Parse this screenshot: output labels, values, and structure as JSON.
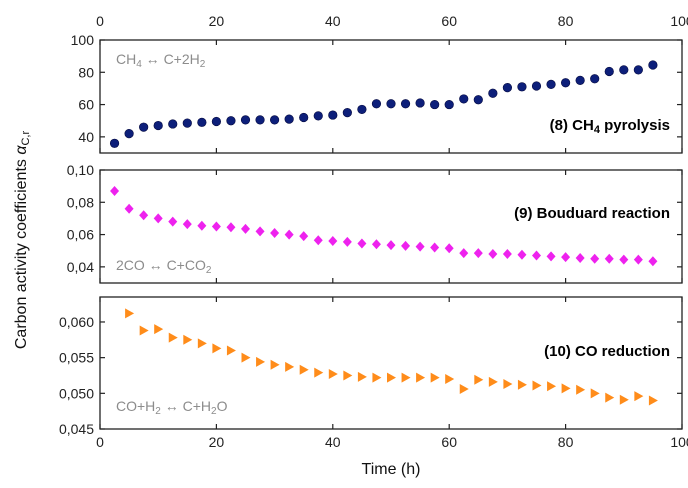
{
  "chart_data": {
    "type": "scatter",
    "xlabel": "Time (h)",
    "ylabel_text": "Carbon activity coefficients ",
    "ylabel_symbol": "α",
    "ylabel_subscript": "C,r",
    "xlim": [
      0,
      100
    ],
    "xticks": [
      "0",
      "20",
      "40",
      "60",
      "80",
      "100"
    ],
    "panels": [
      {
        "name": "(8) CH4 pyrolysis",
        "label_parts": [
          "(8) CH",
          "4",
          " pyrolysis"
        ],
        "equation_parts": [
          "CH",
          "4",
          " ↔ C+2H",
          "2"
        ],
        "marker": "circle",
        "color": "#0d1f7a",
        "ylim": [
          30,
          100
        ],
        "yticks": [
          40,
          60,
          80,
          100
        ],
        "yticklabels": [
          "40",
          "60",
          "80",
          "100"
        ],
        "x": [
          2.5,
          5,
          7.5,
          10,
          12.5,
          15,
          17.5,
          20,
          22.5,
          25,
          27.5,
          30,
          32.5,
          35,
          37.5,
          40,
          42.5,
          45,
          47.5,
          50,
          52.5,
          55,
          57.5,
          60,
          62.5,
          65,
          67.5,
          70,
          72.5,
          75,
          77.5,
          80,
          82.5,
          85,
          87.5,
          90,
          92.5,
          95
        ],
        "y": [
          36,
          42,
          46,
          47,
          48,
          48.5,
          49,
          49.5,
          50,
          50.5,
          50.5,
          50.5,
          51,
          52,
          53,
          53.5,
          55,
          57,
          60.5,
          60.5,
          60.5,
          61,
          60,
          60,
          63.5,
          63,
          67,
          70.5,
          71,
          71.5,
          72.5,
          73.5,
          75,
          76,
          80.5,
          81.5,
          81.5,
          84.5
        ]
      },
      {
        "name": "(9) Bouduard reaction",
        "label_parts": [
          "(9) Bouduard reaction"
        ],
        "equation_parts": [
          "2CO ↔ C+CO",
          "2"
        ],
        "marker": "diamond",
        "color": "#ee22ee",
        "ylim": [
          0.03,
          0.1
        ],
        "yticks": [
          0.04,
          0.06,
          0.08,
          0.1
        ],
        "yticklabels": [
          "0,04",
          "0,06",
          "0,08",
          "0,10"
        ],
        "x": [
          2.5,
          5,
          7.5,
          10,
          12.5,
          15,
          17.5,
          20,
          22.5,
          25,
          27.5,
          30,
          32.5,
          35,
          37.5,
          40,
          42.5,
          45,
          47.5,
          50,
          52.5,
          55,
          57.5,
          60,
          62.5,
          65,
          67.5,
          70,
          72.5,
          75,
          77.5,
          80,
          82.5,
          85,
          87.5,
          90,
          92.5,
          95
        ],
        "y": [
          0.087,
          0.076,
          0.072,
          0.07,
          0.068,
          0.0665,
          0.0655,
          0.065,
          0.0645,
          0.0635,
          0.062,
          0.061,
          0.06,
          0.059,
          0.0565,
          0.056,
          0.0555,
          0.0545,
          0.054,
          0.0535,
          0.053,
          0.0525,
          0.052,
          0.0515,
          0.0485,
          0.0485,
          0.048,
          0.048,
          0.0475,
          0.047,
          0.0465,
          0.046,
          0.0455,
          0.045,
          0.045,
          0.0445,
          0.0445,
          0.0435
        ]
      },
      {
        "name": "(10) CO reduction",
        "label_parts": [
          "(10) CO reduction"
        ],
        "equation_parts": [
          "CO+H",
          "2",
          " ↔ C+H",
          "2",
          "O"
        ],
        "marker": "triangle-right",
        "color": "#ff8c1a",
        "ylim": [
          0.045,
          0.0635
        ],
        "yticks": [
          0.045,
          0.05,
          0.055,
          0.06
        ],
        "yticklabels": [
          "0,045",
          "0,050",
          "0,055",
          "0,060"
        ],
        "x": [
          5,
          7.5,
          10,
          12.5,
          15,
          17.5,
          20,
          22.5,
          25,
          27.5,
          30,
          32.5,
          35,
          37.5,
          40,
          42.5,
          45,
          47.5,
          50,
          52.5,
          55,
          57.5,
          60,
          62.5,
          65,
          67.5,
          70,
          72.5,
          75,
          77.5,
          80,
          82.5,
          85,
          87.5,
          90,
          92.5,
          95
        ],
        "y": [
          0.0612,
          0.0588,
          0.059,
          0.0578,
          0.0575,
          0.057,
          0.0563,
          0.056,
          0.055,
          0.0544,
          0.054,
          0.0537,
          0.0533,
          0.0529,
          0.0527,
          0.0525,
          0.0523,
          0.0522,
          0.0522,
          0.0522,
          0.0522,
          0.0522,
          0.052,
          0.0506,
          0.0519,
          0.0516,
          0.0513,
          0.0512,
          0.0511,
          0.051,
          0.0507,
          0.0505,
          0.05,
          0.0494,
          0.0491,
          0.0496,
          0.049
        ]
      }
    ]
  }
}
